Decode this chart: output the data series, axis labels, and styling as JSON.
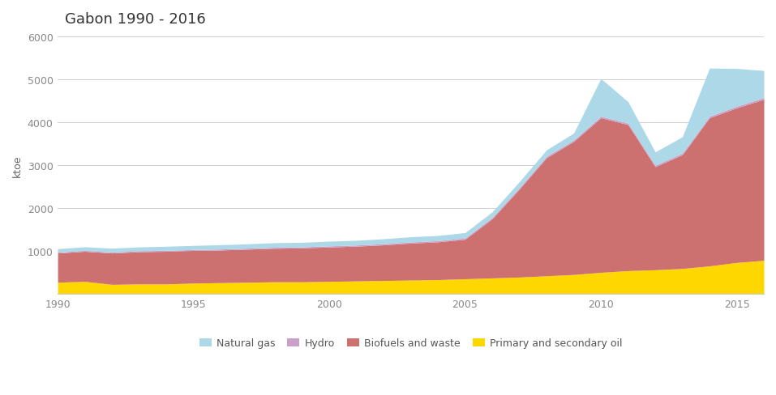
{
  "title": "Gabon 1990 - 2016",
  "ylabel": "ktoe",
  "years": [
    1990,
    1991,
    1992,
    1993,
    1994,
    1995,
    1996,
    1997,
    1998,
    1999,
    2000,
    2001,
    2002,
    2003,
    2004,
    2005,
    2006,
    2007,
    2008,
    2009,
    2010,
    2011,
    2012,
    2013,
    2014,
    2015,
    2016
  ],
  "primary_oil": [
    270,
    290,
    220,
    230,
    230,
    250,
    260,
    270,
    280,
    280,
    290,
    300,
    310,
    320,
    330,
    350,
    370,
    390,
    420,
    450,
    500,
    540,
    560,
    590,
    650,
    730,
    780
  ],
  "biofuels_waste": [
    680,
    700,
    730,
    750,
    760,
    760,
    760,
    770,
    780,
    790,
    800,
    810,
    830,
    860,
    880,
    920,
    1380,
    2050,
    2750,
    3100,
    3600,
    3400,
    2400,
    2650,
    3450,
    3600,
    3750
  ],
  "hydro": [
    20,
    20,
    22,
    22,
    22,
    22,
    23,
    24,
    25,
    25,
    26,
    26,
    27,
    28,
    28,
    30,
    30,
    32,
    33,
    33,
    34,
    34,
    35,
    36,
    36,
    38,
    40
  ],
  "natural_gas": [
    80,
    85,
    90,
    90,
    95,
    95,
    100,
    100,
    105,
    105,
    110,
    110,
    115,
    120,
    120,
    125,
    130,
    140,
    150,
    160,
    880,
    500,
    310,
    380,
    1120,
    880,
    630
  ],
  "color_oil": "#FFD700",
  "color_biofuels": "#CD7070",
  "color_hydro": "#C8A0C8",
  "color_gas": "#ACD8E8",
  "bg_color": "#ffffff",
  "grid_color": "#d0d0d0",
  "ylim": [
    0,
    6000
  ],
  "yticks": [
    0,
    1000,
    2000,
    3000,
    4000,
    5000,
    6000
  ],
  "xticks": [
    1990,
    1995,
    2000,
    2005,
    2010,
    2015
  ]
}
